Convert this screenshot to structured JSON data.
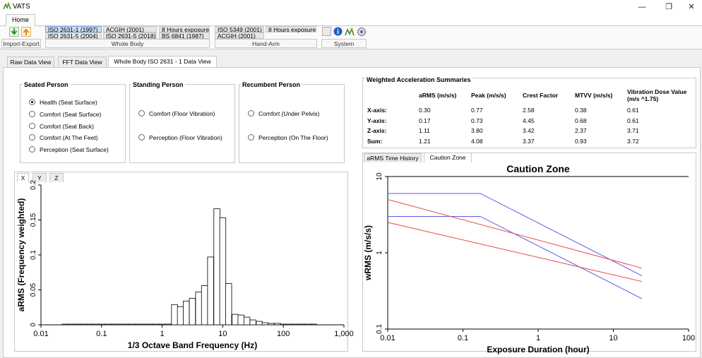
{
  "window": {
    "title": "VATS",
    "minimize": "—",
    "restore": "❐",
    "close": "✕"
  },
  "ribbon": {
    "tab": "Home",
    "import_export_label": "Import-Export",
    "whole_body": {
      "label": "Whole Body",
      "items": [
        "ISO 2631-1 (1997)",
        "ACGIH (2001)",
        "8 Hours exposure",
        "ISO 2631-5 (2004)",
        "ISO 2631-5 (2018)",
        "BS 6841 (1987)"
      ]
    },
    "hand_arm": {
      "label": "Hand-Arm",
      "items": [
        "ISO 5349 (2001)",
        "8 Hours exposure",
        "ACGIH (2001)"
      ]
    },
    "system_label": "System"
  },
  "view_tabs": [
    "Raw Data View",
    "FFT Data View",
    "Whole Body ISO 2631 - 1 Data View"
  ],
  "seated": {
    "title": "Seated Person",
    "options": [
      "Health (Seat Surface)",
      "Comfort (Seat Surface)",
      "Comfort (Seat Back)",
      "Comfort (At The Feet)",
      "Perception (Seat Surface)"
    ],
    "selected": 0
  },
  "standing": {
    "title": "Standing Person",
    "options": [
      "Comfort (Floor Vibration)",
      "Perception (Floor Vibration)"
    ]
  },
  "recumbent": {
    "title": "Recumbent Person",
    "options": [
      "Comfort (Under Pelvis)",
      "Perception (On The Floor)"
    ]
  },
  "summary": {
    "title": "Weighted Acceleration Summaries",
    "headers": [
      "aRMS (m/s/s)",
      "Peak (m/s/s)",
      "Crest Factor",
      "MTVV (m/s/s)",
      "Vibration Dose Value",
      "(m/s ^1.75)"
    ],
    "rows": [
      {
        "label": "X-axis:",
        "values": [
          "0.30",
          "0.77",
          "2.58",
          "0.38",
          "0.61"
        ]
      },
      {
        "label": "Y-axis:",
        "values": [
          "0.17",
          "0.73",
          "4.45",
          "0.68",
          "0.61"
        ]
      },
      {
        "label": "Z-axis:",
        "values": [
          "1.11",
          "3.80",
          "3.42",
          "2.37",
          "3.71"
        ]
      },
      {
        "label": "Sum:",
        "values": [
          "1.21",
          "4.08",
          "3.37",
          "0.93",
          "3.72"
        ]
      }
    ]
  },
  "axis_tabs": [
    "X",
    "Y",
    "Z"
  ],
  "chart_tabs": [
    "aRMS Time History",
    "Caution Zone"
  ],
  "chart_data": [
    {
      "type": "bar",
      "title": "",
      "xlabel": "1/3 Octave Band Frequency (Hz)",
      "ylabel": "aRMS (Frequency weighted)",
      "x_scale": "log",
      "xlim": [
        0.01,
        1000
      ],
      "ylim": [
        0,
        0.2
      ],
      "x_ticks": [
        "0.01",
        "0.1",
        "1",
        "10",
        "100",
        "1,000"
      ],
      "y_ticks": [
        "0",
        "0.05",
        "0.1",
        "0.15",
        "0.2"
      ],
      "x": [
        0.025,
        0.0315,
        0.04,
        0.05,
        0.063,
        0.08,
        0.1,
        0.125,
        0.16,
        0.2,
        0.25,
        0.315,
        0.4,
        0.5,
        0.63,
        0.8,
        1,
        1.25,
        1.6,
        2,
        2.5,
        3.15,
        4,
        5,
        6.3,
        8,
        10,
        12.5,
        16,
        20,
        25,
        31.5,
        40,
        50,
        63,
        80,
        100,
        125,
        160,
        200,
        250,
        315
      ],
      "values": [
        0.001,
        0.001,
        0.001,
        0.001,
        0.001,
        0.001,
        0.001,
        0.001,
        0.001,
        0.001,
        0.001,
        0.001,
        0.001,
        0.001,
        0.001,
        0.001,
        0.001,
        0.001,
        0.029,
        0.026,
        0.034,
        0.038,
        0.047,
        0.056,
        0.097,
        0.166,
        0.153,
        0.059,
        0.015,
        0.014,
        0.011,
        0.007,
        0.005,
        0.003,
        0.002,
        0.002,
        0.001,
        0.001,
        0.001,
        0.001,
        0.001,
        0.001
      ]
    },
    {
      "type": "line",
      "title": "Caution Zone",
      "xlabel": "Exposure Duration (hour)",
      "ylabel": "wRMS (m/s/s)",
      "x_scale": "log",
      "y_scale": "log",
      "xlim": [
        0.01,
        100
      ],
      "ylim": [
        0.1,
        10
      ],
      "x_ticks": [
        "0.01",
        "0.1",
        "1",
        "10",
        "100"
      ],
      "y_ticks": [
        "0.1",
        "1",
        "10"
      ],
      "series": [
        {
          "color": "#5a5ae6",
          "x": [
            0.01,
            0.17,
            24
          ],
          "y": [
            6.0,
            6.0,
            0.5
          ]
        },
        {
          "color": "#5a5ae6",
          "x": [
            0.01,
            0.17,
            24
          ],
          "y": [
            3.0,
            3.0,
            0.25
          ]
        },
        {
          "color": "#e84a4a",
          "x": [
            0.01,
            24
          ],
          "y": [
            5.0,
            0.63
          ]
        },
        {
          "color": "#e84a4a",
          "x": [
            0.01,
            24
          ],
          "y": [
            2.5,
            0.42
          ]
        }
      ]
    }
  ]
}
